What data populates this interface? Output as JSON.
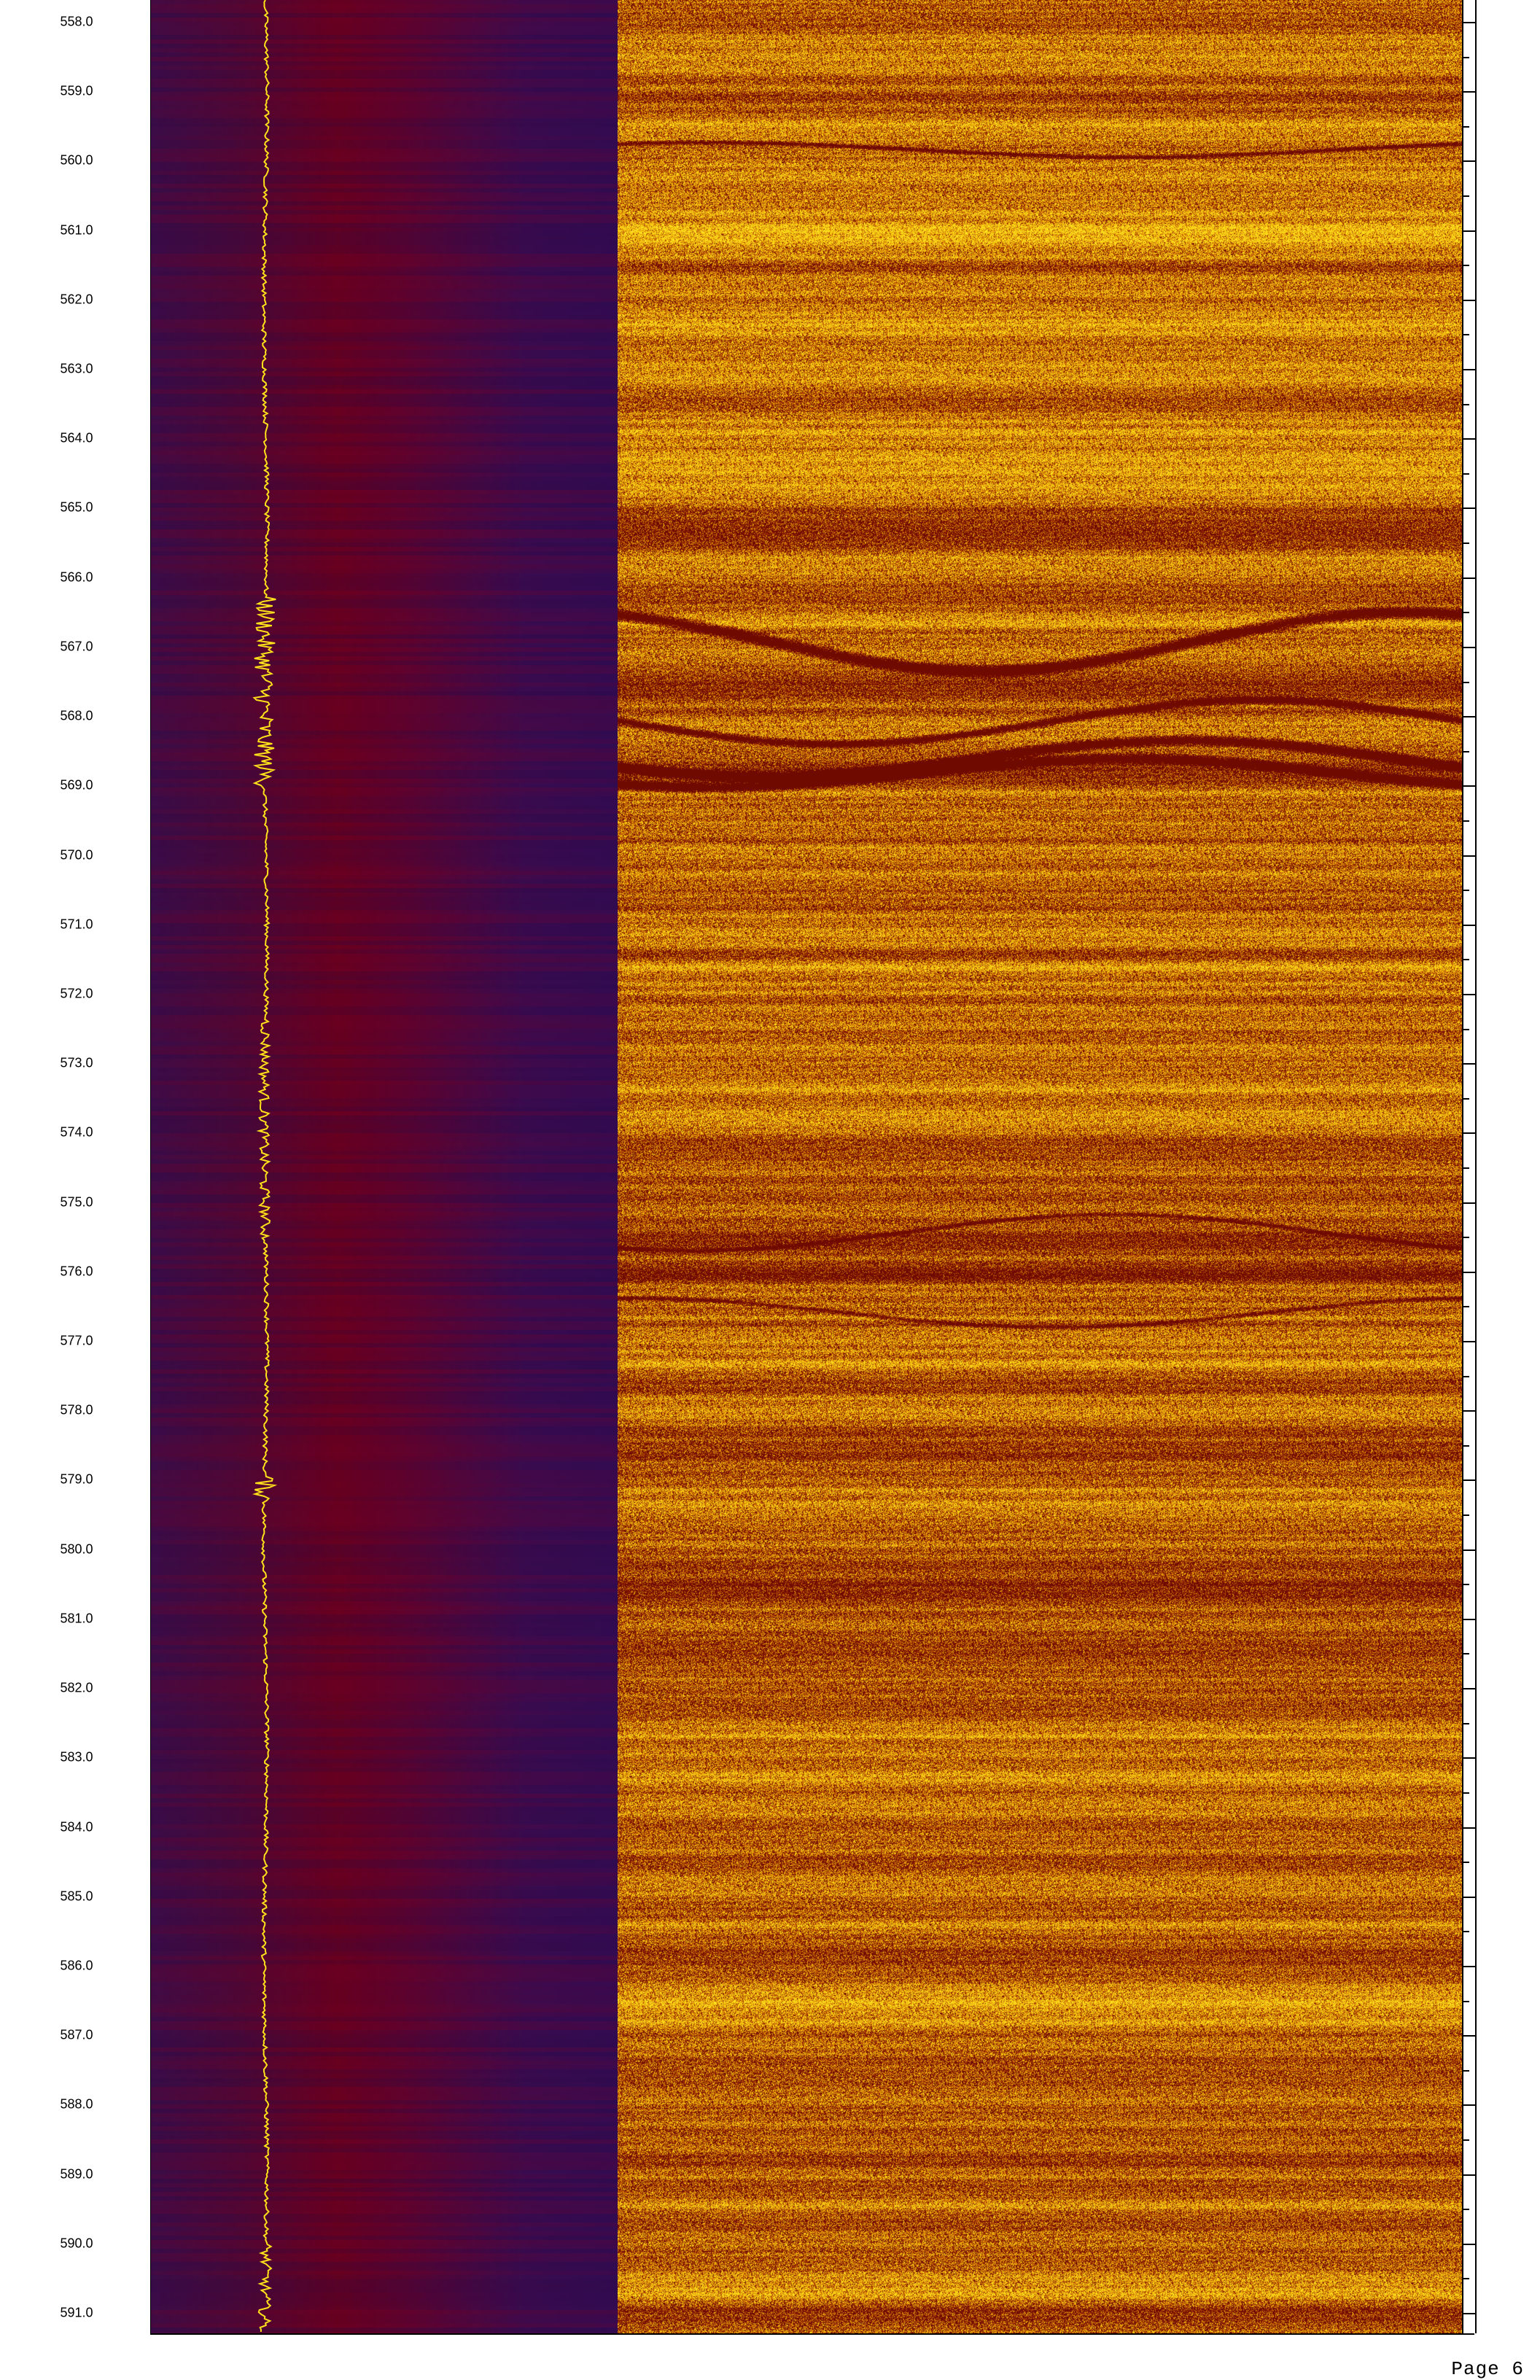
{
  "depth_track": {
    "labels": [
      "558.0",
      "559.0",
      "560.0",
      "561.0",
      "562.0",
      "563.0",
      "564.0",
      "565.0",
      "566.0",
      "567.0",
      "568.0",
      "569.0",
      "570.0",
      "571.0",
      "572.0",
      "573.0",
      "574.0",
      "575.0",
      "576.0",
      "577.0",
      "578.0",
      "579.0",
      "580.0",
      "581.0",
      "582.0",
      "583.0",
      "584.0",
      "585.0",
      "586.0",
      "587.0",
      "588.0",
      "589.0",
      "590.0",
      "591.0"
    ]
  },
  "colors": {
    "track1_purple": "#3a0a4a",
    "track1_red": "#6a0018",
    "trace_yellow": "#ffe21a",
    "image_dark": "#5a0000",
    "image_mid": "#b04a00",
    "image_light": "#ffd010"
  },
  "footer": {
    "page_label": "Page 6"
  }
}
